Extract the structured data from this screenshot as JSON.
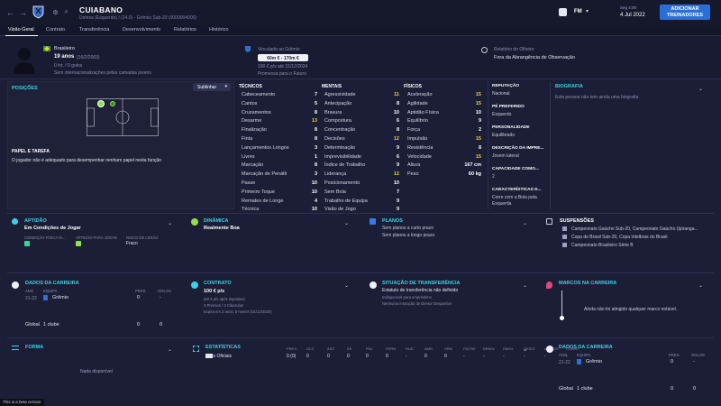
{
  "club": {
    "name": "CUIABANO",
    "subtitle": "Defesa (Esquerdo) / (24.0) - Grêmio Sub-20 (0000004000)"
  },
  "topbar": {
    "fm_label": "FM",
    "date_day": "Seg 4:00",
    "date": "4 Jul 2022",
    "add_button": "ADICIONAR TREINADORES"
  },
  "tabs": [
    "Visão Geral",
    "Contrato",
    "Transferência",
    "Desenvolvimento",
    "Relatórios",
    "Histórico"
  ],
  "header": {
    "country": "Brasileiro",
    "age": "19 anos",
    "birth": "(16/2/2003)",
    "caps": "0 int. / 0 golos",
    "intl_note": "Sem internacionalizações pelas camadas jovens",
    "contract_label": "Vinculado ao Grêmio",
    "value_range": "60m € - 170m €",
    "wage": "100 € p/s até 31/12/2024",
    "promise": "Promessa para o Futuro",
    "scout_label": "Relatório do Olheiro",
    "scout_value": "Fora da Abrangência de Observação"
  },
  "positions": {
    "title": "POSIÇÕES",
    "dropdown": "Sublinhar",
    "role_title": "PAPEL E TAREFA",
    "role_text": "O jogador não é adequado para desempenhar nenhum papel nesta função"
  },
  "technical": {
    "title": "TÉCNICOS",
    "items": [
      [
        "Cabeceamento",
        "7"
      ],
      [
        "Cantos",
        "5"
      ],
      [
        "Cruzamentos",
        "8"
      ],
      [
        "Desarme",
        "13"
      ],
      [
        "Finalização",
        "8"
      ],
      [
        "Finta",
        "8"
      ],
      [
        "Lançamentos Longos",
        "3"
      ],
      [
        "Livres",
        "1"
      ],
      [
        "Marcação",
        "8"
      ],
      [
        "Marcação de Penálti",
        "3"
      ],
      [
        "Passe",
        "10"
      ],
      [
        "Primeiro Toque",
        "10"
      ],
      [
        "Remates de Longe",
        "4"
      ],
      [
        "Técnica",
        "10"
      ]
    ]
  },
  "mental": {
    "title": "MENTAIS",
    "items": [
      [
        "Agressividade",
        "11"
      ],
      [
        "Antecipação",
        "8"
      ],
      [
        "Bravura",
        "10"
      ],
      [
        "Compostura",
        "6"
      ],
      [
        "Concentração",
        "8"
      ],
      [
        "Decisões",
        "12"
      ],
      [
        "Determinação",
        "9"
      ],
      [
        "Imprevisibilidade",
        "6"
      ],
      [
        "Índice de Trabalho",
        "9"
      ],
      [
        "Liderança",
        "12"
      ],
      [
        "Posicionamento",
        "10"
      ],
      [
        "Sem Bola",
        "7"
      ],
      [
        "Trabalho de Equipa",
        "9"
      ],
      [
        "Visão de Jogo",
        "9"
      ]
    ]
  },
  "physical": {
    "title": "FÍSICOS",
    "items": [
      [
        "Aceleração",
        "15"
      ],
      [
        "Agilidade",
        "15"
      ],
      [
        "Aptidão Física",
        "10"
      ],
      [
        "Equilíbrio",
        "9"
      ],
      [
        "Força",
        "2"
      ],
      [
        "Impulsão",
        "15"
      ],
      [
        "Resistência",
        "8"
      ],
      [
        "Velocidade",
        "15"
      ]
    ],
    "height_label": "Altura",
    "height": "167 cm",
    "weight_label": "Peso",
    "weight": "60 kg"
  },
  "highlights": [
    "13",
    "12",
    "12",
    "11",
    "15",
    "15",
    "15",
    "15"
  ],
  "info": {
    "rep_label": "REPUTAÇÃO",
    "rep": "Nacional",
    "foot_label": "PÉ PREFERIDO",
    "foot": "Esquerdo",
    "pers_label": "PERSONALIDADE",
    "pers": "Equilibrado",
    "desc_label": "DESCRIÇÃO DA IMPRE...",
    "desc": "Jovem lateral",
    "cap_label": "CAPACIDADE COMO...",
    "cap": "2",
    "char_label": "CARACTERÍSTICAS D...",
    "char": "Corre com a Bola pela Esquerda"
  },
  "bio": {
    "title": "BIOGRAFIA",
    "text": "Esta pessoa não tem ainda uma biografia"
  },
  "aptidao": {
    "title": "APTIDÃO",
    "status": "Em Condições de Jogar",
    "c1": "CONDIÇÃO FÍSICA SI...",
    "c2": "APTIDÃO PARA JOGAR",
    "c3": "RISCO DE LESÃO",
    "c3v": "Fraco"
  },
  "dinamica": {
    "title": "DINÂMICA",
    "value": "Realmente Boa"
  },
  "planos": {
    "title": "PLANOS",
    "l1": "Sem planos a curto prazo",
    "l2": "Sem planos a longo prazo"
  },
  "suspensoes": {
    "title": "SUSPENSÕES",
    "items": [
      "Campeonato Gaúcho Sub-20, Campeonato Gaúcho (Ipiranga...",
      "Copa do Brasil Sub-20, Copa Intelbras do Brasil",
      "Campeonato Brasileiro Série B"
    ]
  },
  "career1": {
    "title": "DADOS DA CARREIRA",
    "h_year": "ANO",
    "h_team": "EQUIPA",
    "h_apps": "PRES.",
    "h_goals": "GOLOS",
    "year": "21-22",
    "team": "Grêmio",
    "apps": "0",
    "goals": "-",
    "total_label": "Global",
    "total_clubs": "1 clube",
    "total_apps": "0",
    "total_goals": "0"
  },
  "contrato": {
    "title": "CONTRATO",
    "wage": "100 € p/s",
    "l1": "(60 € p/s após impostos)",
    "l2": "3 Prémios / 3 Cláusulas",
    "l3": "Expira em 2 anos, 5 meses (31/12/2024)"
  },
  "transferencia": {
    "title": "SITUAÇÃO DE TRANSFERÊNCIA",
    "status": "Estatuto de transferência não definido",
    "l1": "Indisponível para empréstimo",
    "l2": "Nenhuma instrução de Diretor Desportivo"
  },
  "marcos": {
    "title": "MARCOS NA CARREIRA",
    "text": "Ainda não foi atingido qualquer marco notável."
  },
  "forma": {
    "title": "FORMA",
    "text": "Nada disponível"
  },
  "stats": {
    "title": "ESTATÍSTICAS",
    "cols": [
      "PRES.",
      "GLS",
      "ASS",
      "EE",
      "PDJ",
      "PERN",
      "RUD",
      "AMR",
      "VRM",
      "FNT/90",
      "REM%",
      "PAS%",
      "DES/G",
      "ALIVIOS",
      "CLMED"
    ],
    "row_label": "Não Oficiais",
    "row": [
      "0 (0)",
      "0",
      "0",
      "0",
      "0",
      "0",
      "-",
      "0",
      "0",
      "-",
      "-",
      "-",
      "-",
      "-",
      "-"
    ]
  },
  "career2": {
    "title": "DADOS DA CARREIRA",
    "h_year": "ANO",
    "h_team": "EQUIPA",
    "h_apps": "PRES.",
    "h_goals": "GOLOS",
    "year": "21-22",
    "team": "Grêmio",
    "apps": "0",
    "goals": "-",
    "total_label": "Global",
    "total_clubs": "1 clube",
    "total_apps": "0",
    "total_goals": "0"
  },
  "beta": "This is a beta version",
  "colors": {
    "accent": "#3ad3e6",
    "highlight": "#e8d534",
    "button": "#2a6fd8",
    "bg": "#1b1e36"
  }
}
